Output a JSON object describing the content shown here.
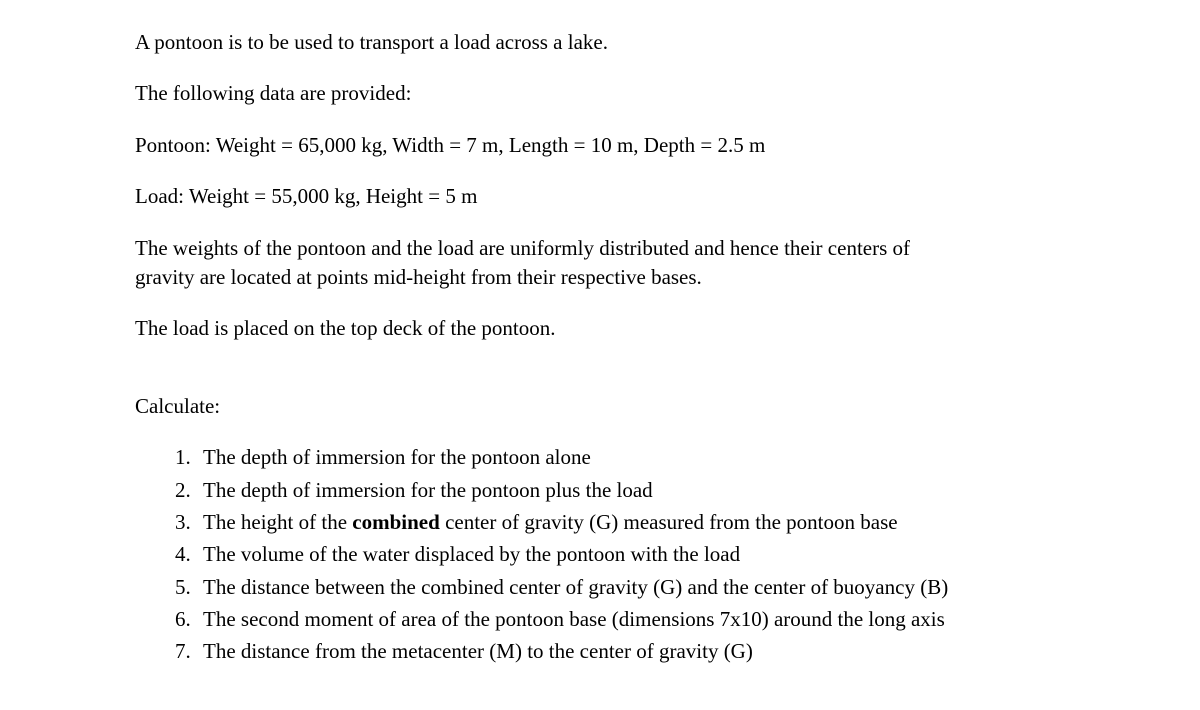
{
  "intro": {
    "line1": "A pontoon is to be used to transport a load across a lake.",
    "line2": "The following data are provided:",
    "line3": "Pontoon: Weight = 65,000 kg, Width = 7 m, Length = 10 m, Depth = 2.5 m",
    "line4": "Load: Weight = 55,000 kg, Height = 5 m",
    "line5a": "The weights of the pontoon and the load are uniformly distributed and hence their centers of",
    "line5b": "gravity are located at points mid-height from their respective bases.",
    "line6": "The load is placed on the top deck of the pontoon."
  },
  "calculate": {
    "heading": "Calculate:",
    "items": [
      {
        "num": "1.",
        "text_before": "The depth of immersion for the pontoon alone",
        "bold": "",
        "text_after": ""
      },
      {
        "num": "2.",
        "text_before": "The depth of immersion for the pontoon plus the load",
        "bold": "",
        "text_after": ""
      },
      {
        "num": "3.",
        "text_before": "The height of the ",
        "bold": "combined",
        "text_after": " center of gravity (G) measured from the pontoon base"
      },
      {
        "num": "4.",
        "text_before": "The volume of the water displaced by the pontoon with the load",
        "bold": "",
        "text_after": ""
      },
      {
        "num": "5.",
        "text_before": "The distance between the combined center of gravity (G) and the center of buoyancy (B)",
        "bold": "",
        "text_after": ""
      },
      {
        "num": "6.",
        "text_before": "The second moment of area of the pontoon base (dimensions 7x10) around the long axis",
        "bold": "",
        "text_after": ""
      },
      {
        "num": "7.",
        "text_before": "The distance from the metacenter (M) to the center of gravity (G)",
        "bold": "",
        "text_after": ""
      }
    ]
  }
}
